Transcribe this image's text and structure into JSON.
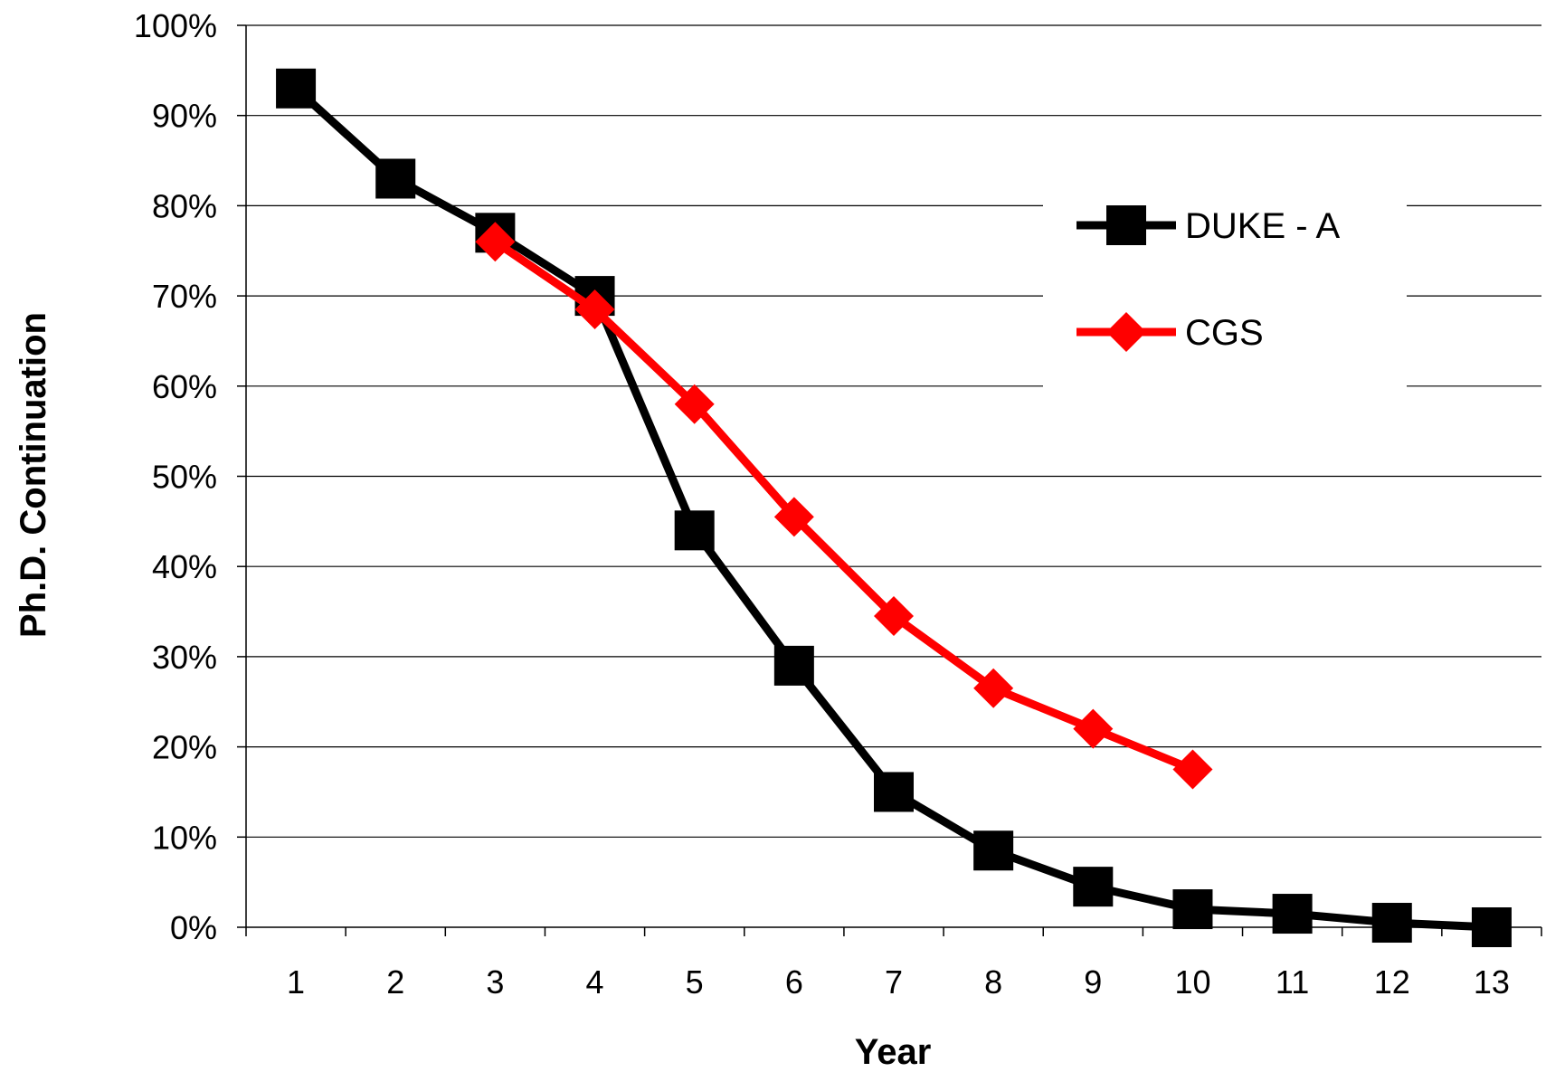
{
  "chart_data": {
    "type": "line",
    "title": "",
    "xlabel": "Year",
    "ylabel": "Ph.D. Continuation",
    "x": [
      1,
      2,
      3,
      4,
      5,
      6,
      7,
      8,
      9,
      10,
      11,
      12,
      13
    ],
    "x_tick_labels": [
      "1",
      "2",
      "3",
      "4",
      "5",
      "6",
      "7",
      "8",
      "9",
      "10",
      "11",
      "12",
      "13"
    ],
    "y_tick_labels": [
      "0%",
      "10%",
      "20%",
      "30%",
      "40%",
      "50%",
      "60%",
      "70%",
      "80%",
      "90%",
      "100%"
    ],
    "ylim": [
      0,
      100
    ],
    "y_unit": "percent",
    "grid": "horizontal",
    "legend_position": "upper-right",
    "series": [
      {
        "name": "DUKE - A",
        "color": "#000000",
        "marker": "square",
        "x": [
          1,
          2,
          3,
          4,
          5,
          6,
          7,
          8,
          9,
          10,
          11,
          12,
          13
        ],
        "values": [
          93,
          83,
          77,
          70,
          44,
          29,
          15,
          8.5,
          4.5,
          2,
          1.5,
          0.5,
          0
        ]
      },
      {
        "name": "CGS",
        "color": "#ff0000",
        "marker": "diamond",
        "x": [
          3,
          4,
          5,
          6,
          7,
          8,
          9,
          10
        ],
        "values": [
          76,
          68.5,
          58,
          45.5,
          34.5,
          26.5,
          22,
          17.5
        ]
      }
    ]
  }
}
